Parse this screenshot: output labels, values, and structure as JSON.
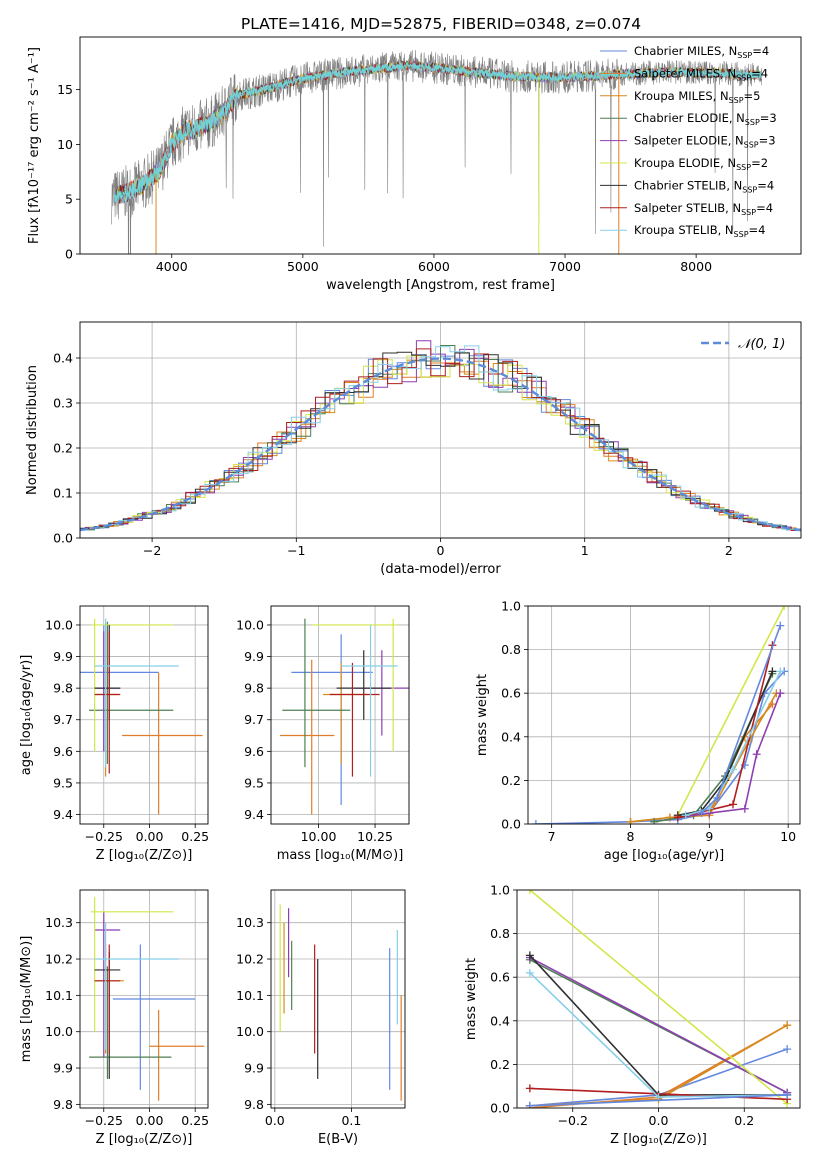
{
  "figure": {
    "title": "PLATE=1416, MJD=52875, FIBERID=0348, z=0.074"
  },
  "colors": [
    "#6388e0",
    "#e07d2a",
    "#d68b1f",
    "#4f7f52",
    "#8e3fb3",
    "#d4e64a",
    "#2f2f2f",
    "#b01e1e",
    "#87cfe8"
  ],
  "chart_data": [
    {
      "id": "spectrum",
      "type": "line",
      "xlabel": "wavelength [Angstrom, rest frame]",
      "ylabel": "Flux [fλ10⁻¹⁷ erg cm⁻² s⁻¹ A⁻¹]",
      "xlim": [
        3300,
        8800
      ],
      "ylim": [
        0,
        19.8
      ],
      "xticks": [
        4000,
        5000,
        6000,
        7000,
        8000
      ],
      "yticks": [
        0,
        5,
        10,
        15
      ],
      "legend": "right",
      "series": [
        {
          "name": "Chabrier MILES, N",
          "sub": "SSP",
          "suffix": "=4"
        },
        {
          "name": "Salpeter MILES, N",
          "sub": "SSP",
          "suffix": "=4"
        },
        {
          "name": "Kroupa MILES, N",
          "sub": "SSP",
          "suffix": "=5"
        },
        {
          "name": "Chabrier ELODIE, N",
          "sub": "SSP",
          "suffix": "=3"
        },
        {
          "name": "Salpeter ELODIE, N",
          "sub": "SSP",
          "suffix": "=3"
        },
        {
          "name": "Kroupa ELODIE, N",
          "sub": "SSP",
          "suffix": "=2"
        },
        {
          "name": "Chabrier STELIB, N",
          "sub": "SSP",
          "suffix": "=4"
        },
        {
          "name": "Salpeter STELIB, N",
          "sub": "SSP",
          "suffix": "=4"
        },
        {
          "name": "Kroupa STELIB, N",
          "sub": "SSP",
          "suffix": "=4"
        }
      ],
      "continuum": {
        "x": [
          3550,
          3700,
          3800,
          3900,
          4000,
          4100,
          4200,
          4300,
          4400,
          4500,
          4700,
          5000,
          5200,
          5500,
          5800,
          6000,
          6300,
          6600,
          7000,
          7400,
          7800,
          8200,
          8500
        ],
        "y": [
          5.2,
          5.8,
          6.5,
          7.5,
          10.0,
          11.2,
          11.5,
          12.0,
          13.0,
          14.5,
          15.0,
          16.0,
          16.4,
          16.8,
          17.2,
          17.0,
          16.6,
          16.2,
          16.1,
          16.4,
          16.6,
          16.5,
          16.3
        ]
      }
    },
    {
      "id": "residuals",
      "type": "line",
      "xlabel": "(data-model)/error",
      "ylabel": "Normed distribution",
      "xlim": [
        -2.5,
        2.5
      ],
      "ylim": [
        0,
        0.48
      ],
      "xticks": [
        -2,
        -1,
        0,
        1,
        2
      ],
      "yticks": [
        0.0,
        0.1,
        0.2,
        0.3,
        0.4
      ],
      "legend": "top-right",
      "gauss_label": "𝒩(0, 1)"
    },
    {
      "id": "age-vs-Z",
      "type": "scatter",
      "xlabel": "Z [log₁₀(Z/Z⊙)]",
      "ylabel": "age  [log₁₀(age/yr)]",
      "xlim": [
        -0.38,
        0.32
      ],
      "ylim": [
        9.37,
        10.06
      ],
      "xticks": [
        -0.25,
        0.0,
        0.25
      ],
      "yticks": [
        9.4,
        9.5,
        9.6,
        9.7,
        9.8,
        9.9,
        10.0
      ],
      "points": [
        {
          "x": -0.25,
          "y": 9.85,
          "xerr": [
            0.3,
            0.3
          ],
          "yerr": [
            0.25,
            0.15
          ]
        },
        {
          "x": 0.05,
          "y": 9.65,
          "xerr": [
            0.2,
            0.24
          ],
          "yerr": [
            0.25,
            0.2
          ]
        },
        {
          "x": -0.24,
          "y": 9.78,
          "xerr": [
            0.06,
            0.07
          ],
          "yerr": [
            0.26,
            0.22
          ]
        },
        {
          "x": -0.23,
          "y": 9.73,
          "xerr": [
            0.1,
            0.36
          ],
          "yerr": [
            0.17,
            0.28
          ]
        },
        {
          "x": -0.25,
          "y": 9.8,
          "xerr": [
            0.05,
            0.09
          ],
          "yerr": [
            0.2,
            0.18
          ]
        },
        {
          "x": -0.3,
          "y": 10.0,
          "xerr": [
            0.02,
            0.43
          ],
          "yerr": [
            0.4,
            0.02
          ]
        },
        {
          "x": -0.22,
          "y": 9.8,
          "xerr": [
            0.08,
            0.06
          ],
          "yerr": [
            0.1,
            0.2
          ]
        },
        {
          "x": -0.22,
          "y": 9.78,
          "xerr": [
            0.08,
            0.06
          ],
          "yerr": [
            0.25,
            0.2
          ]
        },
        {
          "x": -0.24,
          "y": 9.87,
          "xerr": [
            0.06,
            0.4
          ],
          "yerr": [
            0.32,
            0.15
          ]
        }
      ]
    },
    {
      "id": "age-vs-mass",
      "type": "scatter",
      "xlabel": "mass [log₁₀(M/M⊙)]",
      "ylabel": "",
      "xlim": [
        9.79,
        10.4
      ],
      "ylim": [
        9.37,
        10.06
      ],
      "xticks": [
        10.0,
        10.25
      ],
      "yticks": [
        9.4,
        9.5,
        9.6,
        9.7,
        9.8,
        9.9,
        10.0
      ],
      "points": [
        {
          "x": 10.1,
          "y": 9.85,
          "xerr": [
            0.22,
            0.14
          ],
          "yerr": [
            0.42,
            0.12
          ]
        },
        {
          "x": 9.97,
          "y": 9.65,
          "xerr": [
            0.14,
            0.1
          ],
          "yerr": [
            0.25,
            0.24
          ]
        },
        {
          "x": 10.1,
          "y": 9.78,
          "xerr": [
            0.08,
            0.12
          ],
          "yerr": [
            0.22,
            0.1
          ]
        },
        {
          "x": 9.94,
          "y": 9.73,
          "xerr": [
            0.1,
            0.2
          ],
          "yerr": [
            0.18,
            0.29
          ]
        },
        {
          "x": 10.28,
          "y": 9.8,
          "xerr": [
            0.12,
            0.12
          ],
          "yerr": [
            0.15,
            0.12
          ]
        },
        {
          "x": 10.33,
          "y": 10.0,
          "xerr": [
            0.36,
            0.02
          ],
          "yerr": [
            0.4,
            0.02
          ]
        },
        {
          "x": 10.2,
          "y": 9.8,
          "xerr": [
            0.12,
            0.12
          ],
          "yerr": [
            0.1,
            0.12
          ]
        },
        {
          "x": 10.15,
          "y": 9.78,
          "xerr": [
            0.1,
            0.12
          ],
          "yerr": [
            0.26,
            0.1
          ]
        },
        {
          "x": 10.23,
          "y": 9.87,
          "xerr": [
            0.13,
            0.12
          ],
          "yerr": [
            0.35,
            0.13
          ]
        }
      ]
    },
    {
      "id": "mw-vs-age",
      "type": "line",
      "xlabel": "age  [log₁₀(age/yr)]",
      "ylabel": "mass weight",
      "xlim": [
        6.7,
        10.15
      ],
      "ylim": [
        0,
        1.0
      ],
      "xticks": [
        7,
        8,
        9,
        10
      ],
      "yticks": [
        0.0,
        0.2,
        0.4,
        0.6,
        0.8,
        1.0
      ],
      "series": [
        {
          "x": [
            6.8,
            8.0,
            8.6,
            9.0,
            9.45,
            9.7,
            9.95
          ],
          "y": [
            0.0,
            0.01,
            0.02,
            0.05,
            0.27,
            0.6,
            0.7
          ]
        },
        {
          "x": [
            8.0,
            8.5,
            9.0,
            9.45,
            9.8
          ],
          "y": [
            0.01,
            0.03,
            0.05,
            0.4,
            0.55
          ]
        },
        {
          "x": [
            8.0,
            8.5,
            9.0,
            9.5,
            9.85
          ],
          "y": [
            0.01,
            0.03,
            0.04,
            0.38,
            0.6
          ]
        },
        {
          "x": [
            8.3,
            8.8,
            9.2,
            9.8
          ],
          "y": [
            0.01,
            0.04,
            0.22,
            0.69
          ]
        },
        {
          "x": [
            8.6,
            9.0,
            9.45,
            9.6,
            9.9
          ],
          "y": [
            0.03,
            0.05,
            0.07,
            0.32,
            0.6
          ]
        },
        {
          "x": [
            8.6,
            9.95
          ],
          "y": [
            0.04,
            1.0
          ]
        },
        {
          "x": [
            8.6,
            8.9,
            9.2,
            9.8
          ],
          "y": [
            0.04,
            0.06,
            0.2,
            0.7
          ]
        },
        {
          "x": [
            8.6,
            9.3,
            9.8
          ],
          "y": [
            0.03,
            0.09,
            0.82
          ]
        },
        {
          "x": [
            8.7,
            9.0,
            9.3,
            9.9
          ],
          "y": [
            0.04,
            0.07,
            0.25,
            0.7
          ]
        },
        {
          "x": [
            8.9,
            9.1,
            9.9
          ],
          "y": [
            0.05,
            0.12,
            0.91
          ]
        }
      ]
    },
    {
      "id": "mass-vs-Z",
      "type": "scatter",
      "xlabel": "Z [log₁₀(Z/Z⊙)]",
      "ylabel": "mass [log₁₀(M/M⊙)]",
      "xlim": [
        -0.38,
        0.32
      ],
      "ylim": [
        9.79,
        10.39
      ],
      "xticks": [
        -0.25,
        0.0,
        0.25
      ],
      "yticks": [
        9.8,
        9.9,
        10.0,
        10.1,
        10.2,
        10.3
      ],
      "points": [
        {
          "x": -0.05,
          "y": 10.09,
          "xerr": [
            0.15,
            0.3
          ],
          "yerr": [
            0.25,
            0.15
          ]
        },
        {
          "x": 0.05,
          "y": 9.96,
          "xerr": [
            0.05,
            0.25
          ],
          "yerr": [
            0.15,
            0.1
          ]
        },
        {
          "x": -0.24,
          "y": 10.14,
          "xerr": [
            0.06,
            0.1
          ],
          "yerr": [
            0.2,
            0.1
          ]
        },
        {
          "x": -0.23,
          "y": 9.93,
          "xerr": [
            0.1,
            0.35
          ],
          "yerr": [
            0.06,
            0.25
          ]
        },
        {
          "x": -0.25,
          "y": 10.28,
          "xerr": [
            0.05,
            0.09
          ],
          "yerr": [
            0.35,
            0.05
          ]
        },
        {
          "x": -0.3,
          "y": 10.33,
          "xerr": [
            0.02,
            0.43
          ],
          "yerr": [
            0.33,
            0.04
          ]
        },
        {
          "x": -0.22,
          "y": 10.17,
          "xerr": [
            0.08,
            0.06
          ],
          "yerr": [
            0.3,
            0.05
          ]
        },
        {
          "x": -0.22,
          "y": 10.14,
          "xerr": [
            0.08,
            0.06
          ],
          "yerr": [
            0.2,
            0.1
          ]
        },
        {
          "x": -0.24,
          "y": 10.2,
          "xerr": [
            0.06,
            0.4
          ],
          "yerr": [
            0.25,
            0.1
          ]
        }
      ]
    },
    {
      "id": "mass-vs-ebv",
      "type": "scatter",
      "xlabel": "E(B-V)",
      "ylabel": "",
      "xlim": [
        -0.005,
        0.17
      ],
      "ylim": [
        9.79,
        10.39
      ],
      "xticks": [
        0.0,
        0.1
      ],
      "yticks": [
        9.8,
        9.9,
        10.0,
        10.1,
        10.2,
        10.3
      ],
      "points": [
        {
          "x": 0.15,
          "y": 10.0,
          "xerr": [
            0,
            0
          ],
          "yerr": [
            0.16,
            0.23
          ]
        },
        {
          "x": 0.165,
          "y": 9.96,
          "xerr": [
            0,
            0
          ],
          "yerr": [
            0.15,
            0.14
          ]
        },
        {
          "x": 0.012,
          "y": 10.1,
          "xerr": [
            0,
            0
          ],
          "yerr": [
            0.05,
            0.2
          ]
        },
        {
          "x": 0.022,
          "y": 10.15,
          "xerr": [
            0,
            0
          ],
          "yerr": [
            0.09,
            0.1
          ]
        },
        {
          "x": 0.018,
          "y": 10.25,
          "xerr": [
            0,
            0
          ],
          "yerr": [
            0.1,
            0.09
          ]
        },
        {
          "x": 0.007,
          "y": 10.2,
          "xerr": [
            0,
            0
          ],
          "yerr": [
            0.2,
            0.15
          ]
        },
        {
          "x": 0.056,
          "y": 10.1,
          "xerr": [
            0,
            0
          ],
          "yerr": [
            0.23,
            0.1
          ]
        },
        {
          "x": 0.052,
          "y": 10.1,
          "xerr": [
            0,
            0
          ],
          "yerr": [
            0.16,
            0.14
          ]
        },
        {
          "x": 0.16,
          "y": 10.15,
          "xerr": [
            0,
            0
          ],
          "yerr": [
            0.13,
            0.13
          ]
        }
      ]
    },
    {
      "id": "mw-vs-Z",
      "type": "line",
      "xlabel": "Z [log₁₀(Z/Z⊙)]",
      "ylabel": "mass weight",
      "xlim": [
        -0.33,
        0.33
      ],
      "ylim": [
        0,
        1.0
      ],
      "xticks": [
        -0.2,
        0.0,
        0.2
      ],
      "yticks": [
        0.0,
        0.2,
        0.4,
        0.6,
        0.8,
        1.0
      ],
      "series": [
        {
          "x": [
            -0.3,
            0.0,
            0.3
          ],
          "y": [
            0.01,
            0.06,
            0.27
          ]
        },
        {
          "x": [
            -0.3,
            0.0,
            0.3
          ],
          "y": [
            0.0,
            0.05,
            0.38
          ]
        },
        {
          "x": [
            -0.3,
            0.0,
            0.3
          ],
          "y": [
            0.01,
            0.04,
            0.38
          ]
        },
        {
          "x": [
            -0.3,
            0.3
          ],
          "y": [
            0.68,
            0.07
          ]
        },
        {
          "x": [
            -0.3,
            0.3
          ],
          "y": [
            0.69,
            0.07
          ]
        },
        {
          "x": [
            -0.3,
            0.3
          ],
          "y": [
            1.0,
            0.02
          ]
        },
        {
          "x": [
            -0.3,
            0.0,
            0.3
          ],
          "y": [
            0.7,
            0.06,
            0.06
          ]
        },
        {
          "x": [
            -0.3,
            0.3
          ],
          "y": [
            0.09,
            0.04
          ]
        },
        {
          "x": [
            -0.3,
            0.0,
            0.3
          ],
          "y": [
            0.62,
            0.05,
            0.06
          ]
        },
        {
          "x": [
            -0.3,
            0.3
          ],
          "y": [
            0.01,
            0.06
          ]
        }
      ]
    }
  ]
}
